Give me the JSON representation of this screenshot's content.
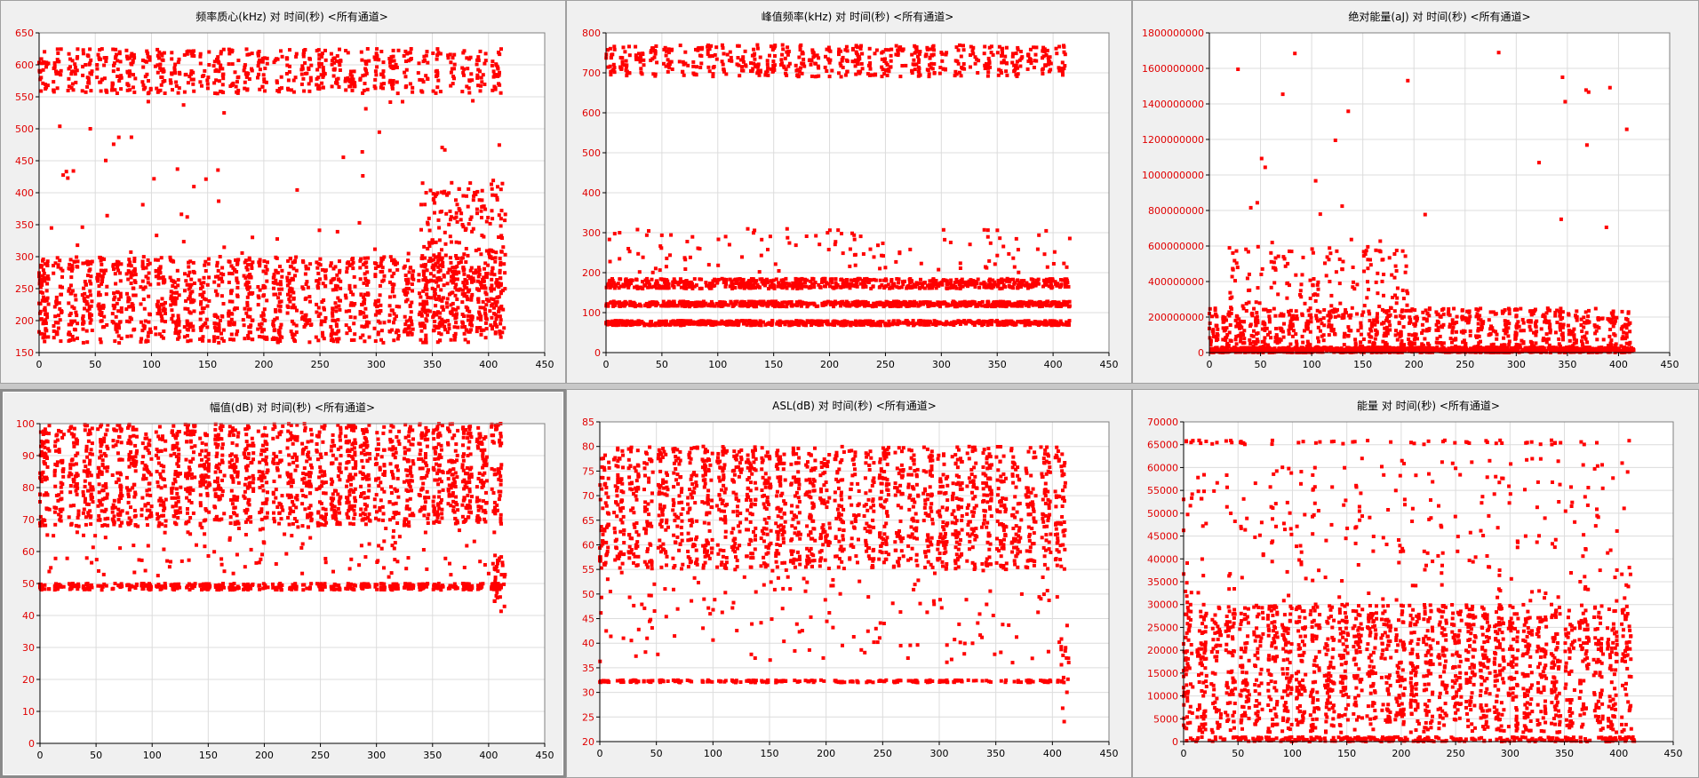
{
  "chart_data": [
    {
      "type": "scatter",
      "title": "频率质心(kHz) 对 时间(秒) <所有通道>",
      "xlim": [
        0,
        450
      ],
      "ylim": [
        150,
        650
      ],
      "xticks": [
        0,
        50,
        100,
        150,
        200,
        250,
        300,
        350,
        400,
        450
      ],
      "yticks": [
        150,
        200,
        250,
        300,
        350,
        400,
        450,
        500,
        550,
        600,
        650
      ],
      "grid": true,
      "marker_color": "#ff0000",
      "clusters": [
        {
          "x": [
            0,
            415
          ],
          "y": [
            555,
            625
          ],
          "count": 700,
          "mode": "bursts"
        },
        {
          "x": [
            0,
            415
          ],
          "y": [
            165,
            300
          ],
          "count": 1500,
          "mode": "bursts"
        },
        {
          "x": [
            340,
            415
          ],
          "y": [
            180,
            420
          ],
          "count": 300,
          "mode": "uniform"
        },
        {
          "x": [
            0,
            415
          ],
          "y": [
            300,
            550
          ],
          "count": 55,
          "mode": "uniform"
        }
      ]
    },
    {
      "type": "scatter",
      "title": "峰值频率(kHz) 对 时间(秒) <所有通道>",
      "xlim": [
        0,
        450
      ],
      "ylim": [
        0,
        800
      ],
      "xticks": [
        0,
        50,
        100,
        150,
        200,
        250,
        300,
        350,
        400,
        450
      ],
      "yticks": [
        0,
        100,
        200,
        300,
        400,
        500,
        600,
        700,
        800
      ],
      "grid": true,
      "marker_color": "#ff0000",
      "clusters": [
        {
          "x": [
            0,
            415
          ],
          "y": [
            690,
            770
          ],
          "count": 600,
          "mode": "bursts"
        },
        {
          "x": [
            0,
            415
          ],
          "y": [
            160,
            185
          ],
          "count": 700,
          "mode": "uniform"
        },
        {
          "x": [
            0,
            415
          ],
          "y": [
            115,
            128
          ],
          "count": 700,
          "mode": "uniform"
        },
        {
          "x": [
            0,
            415
          ],
          "y": [
            68,
            80
          ],
          "count": 700,
          "mode": "uniform"
        },
        {
          "x": [
            0,
            415
          ],
          "y": [
            200,
            310
          ],
          "count": 120,
          "mode": "uniform"
        }
      ]
    },
    {
      "type": "scatter",
      "title": "绝对能量(aJ) 对 时间(秒) <所有通道>",
      "xlim": [
        0,
        450
      ],
      "ylim": [
        0,
        1800000000
      ],
      "xticks": [
        0,
        50,
        100,
        150,
        200,
        250,
        300,
        350,
        400,
        450
      ],
      "yticks": [
        0,
        200000000,
        400000000,
        600000000,
        800000000,
        1000000000,
        1200000000,
        1400000000,
        1600000000,
        1800000000
      ],
      "grid": true,
      "marker_color": "#ff0000",
      "clusters": [
        {
          "x": [
            0,
            415
          ],
          "y": [
            0,
            30000000
          ],
          "count": 900,
          "mode": "uniform"
        },
        {
          "x": [
            0,
            415
          ],
          "y": [
            0,
            250000000
          ],
          "count": 900,
          "mode": "bursts"
        },
        {
          "x": [
            20,
            200
          ],
          "y": [
            200000000,
            600000000
          ],
          "count": 160,
          "mode": "bursts"
        },
        {
          "x": [
            0,
            415
          ],
          "y": [
            500000000,
            1700000000
          ],
          "count": 28,
          "mode": "uniform"
        }
      ]
    },
    {
      "type": "scatter",
      "title": "幅值(dB) 对 时间(秒) <所有通道>",
      "xlim": [
        0,
        450
      ],
      "ylim": [
        0,
        100
      ],
      "xticks": [
        0,
        50,
        100,
        150,
        200,
        250,
        300,
        350,
        400,
        450
      ],
      "yticks": [
        0,
        10,
        20,
        30,
        40,
        50,
        60,
        70,
        80,
        90,
        100
      ],
      "grid": true,
      "marker_color": "#ff0000",
      "clusters": [
        {
          "x": [
            0,
            415
          ],
          "y": [
            48,
            50
          ],
          "count": 500,
          "mode": "bursts"
        },
        {
          "x": [
            0,
            415
          ],
          "y": [
            68,
            100
          ],
          "count": 1800,
          "mode": "bursts"
        },
        {
          "x": [
            0,
            415
          ],
          "y": [
            52,
            68
          ],
          "count": 120,
          "mode": "uniform"
        },
        {
          "x": [
            405,
            415
          ],
          "y": [
            41,
            60
          ],
          "count": 25,
          "mode": "uniform"
        }
      ]
    },
    {
      "type": "scatter",
      "title": "ASL(dB) 对 时间(秒) <所有通道>",
      "xlim": [
        0,
        450
      ],
      "ylim": [
        20,
        85
      ],
      "xticks": [
        0,
        50,
        100,
        150,
        200,
        250,
        300,
        350,
        400,
        450
      ],
      "yticks": [
        20,
        25,
        30,
        35,
        40,
        45,
        50,
        55,
        60,
        65,
        70,
        75,
        80,
        85
      ],
      "grid": true,
      "marker_color": "#ff0000",
      "clusters": [
        {
          "x": [
            0,
            415
          ],
          "y": [
            32,
            32.5
          ],
          "count": 250,
          "mode": "bursts"
        },
        {
          "x": [
            0,
            415
          ],
          "y": [
            55,
            80
          ],
          "count": 1800,
          "mode": "bursts"
        },
        {
          "x": [
            0,
            415
          ],
          "y": [
            36,
            55
          ],
          "count": 150,
          "mode": "uniform"
        },
        {
          "x": [
            405,
            415
          ],
          "y": [
            22,
            47
          ],
          "count": 15,
          "mode": "uniform"
        }
      ]
    },
    {
      "type": "scatter",
      "title": "能量 对 时间(秒) <所有通道>",
      "xlim": [
        0,
        450
      ],
      "ylim": [
        0,
        70000
      ],
      "xticks": [
        0,
        50,
        100,
        150,
        200,
        250,
        300,
        350,
        400,
        450
      ],
      "yticks": [
        0,
        5000,
        10000,
        15000,
        20000,
        25000,
        30000,
        35000,
        40000,
        45000,
        50000,
        55000,
        60000,
        65000,
        70000
      ],
      "grid": true,
      "marker_color": "#ff0000",
      "clusters": [
        {
          "x": [
            0,
            415
          ],
          "y": [
            0,
            1000
          ],
          "count": 300,
          "mode": "uniform"
        },
        {
          "x": [
            0,
            415
          ],
          "y": [
            65000,
            66000
          ],
          "count": 60,
          "mode": "bursts"
        },
        {
          "x": [
            0,
            415
          ],
          "y": [
            2000,
            30000
          ],
          "count": 1800,
          "mode": "bursts"
        },
        {
          "x": [
            0,
            415
          ],
          "y": [
            20000,
            62000
          ],
          "count": 350,
          "mode": "bursts"
        }
      ]
    }
  ]
}
